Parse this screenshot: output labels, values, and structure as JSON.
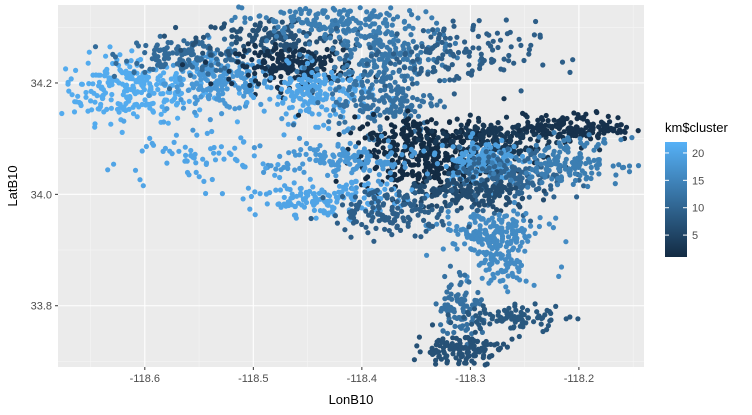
{
  "chart_data": {
    "type": "scatter",
    "xlabel": "LonB10",
    "ylabel": "LatB10",
    "xlim": [
      -118.68,
      -118.14
    ],
    "ylim": [
      33.69,
      34.34
    ],
    "x_ticks": [
      -118.6,
      -118.5,
      -118.4,
      -118.3,
      -118.2
    ],
    "x_tick_labels": [
      "-118.6",
      "-118.5",
      "-118.4",
      "-118.3",
      "-118.2"
    ],
    "y_ticks": [
      33.8,
      34.0,
      34.2
    ],
    "y_tick_labels": [
      "33.8",
      "34.0",
      "34.2"
    ],
    "grid": true,
    "panel_background": "#EBEBEB",
    "legend": {
      "title": "km$cluster",
      "position": "right",
      "range": [
        1,
        22
      ],
      "ticks": [
        5,
        10,
        15,
        20
      ],
      "tick_labels": [
        "5",
        "10",
        "15",
        "20"
      ],
      "low_color": "#132B43",
      "high_color": "#56B1F7"
    },
    "clusters": [
      {
        "cluster": 21,
        "cx": -118.61,
        "cy": 34.19,
        "sx": 0.035,
        "sy": 0.03,
        "n": 260
      },
      {
        "cluster": 18,
        "cx": -118.53,
        "cy": 34.2,
        "sx": 0.025,
        "sy": 0.025,
        "n": 180
      },
      {
        "cluster": 11,
        "cx": -118.56,
        "cy": 34.25,
        "sx": 0.03,
        "sy": 0.015,
        "n": 140
      },
      {
        "cluster": 7,
        "cx": -118.48,
        "cy": 34.28,
        "sx": 0.035,
        "sy": 0.018,
        "n": 140
      },
      {
        "cluster": 14,
        "cx": -118.43,
        "cy": 34.31,
        "sx": 0.04,
        "sy": 0.018,
        "n": 180
      },
      {
        "cluster": 2,
        "cx": -118.46,
        "cy": 34.23,
        "sx": 0.028,
        "sy": 0.018,
        "n": 200
      },
      {
        "cluster": 20,
        "cx": -118.44,
        "cy": 34.18,
        "sx": 0.025,
        "sy": 0.025,
        "n": 180
      },
      {
        "cluster": 13,
        "cx": -118.38,
        "cy": 34.25,
        "sx": 0.03,
        "sy": 0.025,
        "n": 160
      },
      {
        "cluster": 9,
        "cx": -118.32,
        "cy": 34.25,
        "sx": 0.04,
        "sy": 0.03,
        "n": 140
      },
      {
        "cluster": 12,
        "cx": -118.38,
        "cy": 34.17,
        "sx": 0.025,
        "sy": 0.03,
        "n": 160
      },
      {
        "cluster": 1,
        "cx": -118.34,
        "cy": 34.1,
        "sx": 0.035,
        "sy": 0.02,
        "n": 200
      },
      {
        "cluster": 1,
        "cx": -118.34,
        "cy": 34.05,
        "sx": 0.03,
        "sy": 0.02,
        "n": 220
      },
      {
        "cluster": 3,
        "cx": -118.28,
        "cy": 34.1,
        "sx": 0.03,
        "sy": 0.02,
        "n": 160
      },
      {
        "cluster": 2,
        "cx": -118.2,
        "cy": 34.12,
        "sx": 0.025,
        "sy": 0.012,
        "n": 160
      },
      {
        "cluster": 19,
        "cx": -118.29,
        "cy": 34.06,
        "sx": 0.018,
        "sy": 0.02,
        "n": 150
      },
      {
        "cluster": 10,
        "cx": -118.26,
        "cy": 34.03,
        "sx": 0.025,
        "sy": 0.025,
        "n": 160
      },
      {
        "cluster": 6,
        "cx": -118.3,
        "cy": 34.0,
        "sx": 0.03,
        "sy": 0.015,
        "n": 160
      },
      {
        "cluster": 14,
        "cx": -118.21,
        "cy": 34.06,
        "sx": 0.025,
        "sy": 0.02,
        "n": 150
      },
      {
        "cluster": 16,
        "cx": -118.28,
        "cy": 33.93,
        "sx": 0.025,
        "sy": 0.02,
        "n": 160
      },
      {
        "cluster": 16,
        "cx": -118.27,
        "cy": 33.88,
        "sx": 0.012,
        "sy": 0.03,
        "n": 90
      },
      {
        "cluster": 18,
        "cx": -118.42,
        "cy": 34.06,
        "sx": 0.035,
        "sy": 0.02,
        "n": 140
      },
      {
        "cluster": 20,
        "cx": -118.43,
        "cy": 33.99,
        "sx": 0.035,
        "sy": 0.015,
        "n": 150
      },
      {
        "cluster": 9,
        "cx": -118.37,
        "cy": 33.97,
        "sx": 0.03,
        "sy": 0.02,
        "n": 140
      },
      {
        "cluster": 12,
        "cx": -118.31,
        "cy": 33.8,
        "sx": 0.01,
        "sy": 0.03,
        "n": 90
      },
      {
        "cluster": 8,
        "cx": -118.26,
        "cy": 33.78,
        "sx": 0.025,
        "sy": 0.012,
        "n": 90
      },
      {
        "cluster": 7,
        "cx": -118.31,
        "cy": 33.72,
        "sx": 0.02,
        "sy": 0.015,
        "n": 130
      },
      {
        "cluster": 20,
        "cx": -118.56,
        "cy": 34.06,
        "sx": 0.04,
        "sy": 0.025,
        "n": 70
      }
    ]
  }
}
